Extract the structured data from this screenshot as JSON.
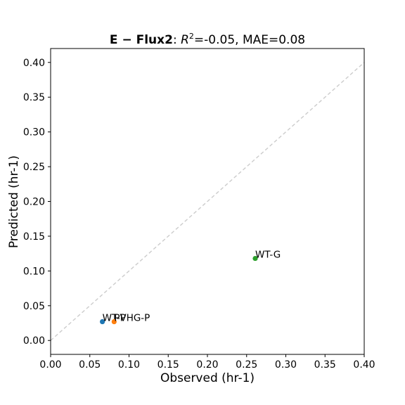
{
  "chart_data": {
    "type": "scatter",
    "title": {
      "method": "E − Flux2",
      "r2_label": "R",
      "r2_sup": "2",
      "r2_value": "=-0.05, MAE=0.08"
    },
    "xlabel": "Observed (hr-1)",
    "ylabel": "Predicted (hr-1)",
    "xlim": [
      0.0,
      0.4
    ],
    "ylim": [
      -0.02,
      0.42
    ],
    "xticks": [
      "0.00",
      "0.05",
      "0.10",
      "0.15",
      "0.20",
      "0.25",
      "0.30",
      "0.35",
      "0.40"
    ],
    "yticks": [
      "0.00",
      "0.05",
      "0.10",
      "0.15",
      "0.20",
      "0.25",
      "0.30",
      "0.35",
      "0.40"
    ],
    "grid": false,
    "identity_line": {
      "from": [
        0.0,
        0.0
      ],
      "to": [
        0.4,
        0.4
      ],
      "color": "#cccccc",
      "style": "dashed"
    },
    "points": [
      {
        "label": "WT-P",
        "x": 0.066,
        "y": 0.027,
        "color": "#1f77b4"
      },
      {
        "label": "PVHG-P",
        "x": 0.081,
        "y": 0.027,
        "color": "#ff7f0e"
      },
      {
        "label": "WT-G",
        "x": 0.261,
        "y": 0.118,
        "color": "#2ca02c"
      }
    ]
  }
}
